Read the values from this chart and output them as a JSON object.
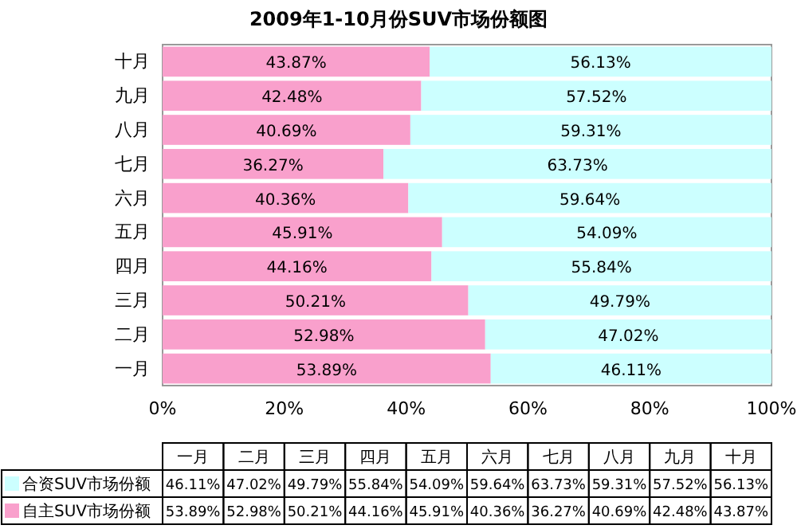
{
  "chart_data": {
    "type": "bar",
    "orientation": "horizontal",
    "stacked": true,
    "title": "2009年1-10月份SUV市场份额图",
    "categories": [
      "十月",
      "九月",
      "八月",
      "七月",
      "六月",
      "五月",
      "四月",
      "三月",
      "二月",
      "一月"
    ],
    "series": [
      {
        "name": "自主SUV市场份额",
        "color": "#f9a0cc",
        "values": [
          43.87,
          42.48,
          40.69,
          36.27,
          40.36,
          45.91,
          44.16,
          50.21,
          52.98,
          53.89
        ],
        "value_labels": [
          "43.87%",
          "42.48%",
          "40.69%",
          "36.27%",
          "40.36%",
          "45.91%",
          "44.16%",
          "50.21%",
          "52.98%",
          "53.89%"
        ]
      },
      {
        "name": "合资SUV市场份额",
        "color": "#ccffff",
        "values": [
          56.13,
          57.52,
          59.31,
          63.73,
          59.64,
          54.09,
          55.84,
          49.79,
          47.02,
          46.11
        ],
        "value_labels": [
          "56.13%",
          "57.52%",
          "59.31%",
          "63.73%",
          "59.64%",
          "54.09%",
          "55.84%",
          "49.79%",
          "47.02%",
          "46.11%"
        ]
      }
    ],
    "xlim": [
      0,
      100
    ],
    "xticks": [
      {
        "value": 0,
        "label": "0%"
      },
      {
        "value": 20,
        "label": "20%"
      },
      {
        "value": 40,
        "label": "40%"
      },
      {
        "value": 60,
        "label": "60%"
      },
      {
        "value": 80,
        "label": "80%"
      },
      {
        "value": 100,
        "label": "100%"
      }
    ],
    "legend": "bottom",
    "grid": false
  }
}
